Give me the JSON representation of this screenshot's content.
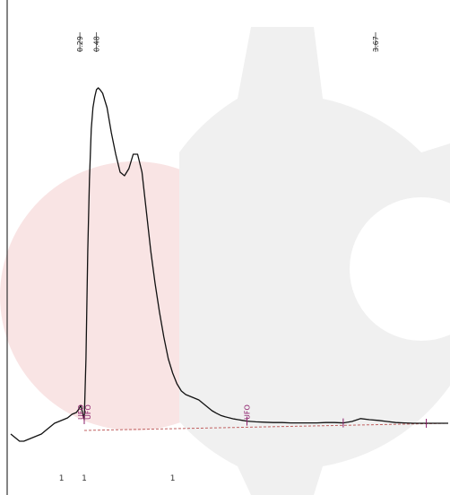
{
  "colors": {
    "trace": "#111111",
    "baseline": "#c06060",
    "event": "#8b1e6b",
    "watermark_pink": "#f7dede",
    "watermark_gray": "#eeeeee"
  },
  "chart_data": {
    "type": "line",
    "title": "",
    "xlabel": "",
    "ylabel": "",
    "grid": false,
    "xlim": [
      -0.5,
      4.5
    ],
    "ylim": [
      -0.05,
      1.05
    ],
    "peak_labels": [
      {
        "x": 0.29,
        "text": "0.29"
      },
      {
        "x": 0.48,
        "text": "0.48"
      },
      {
        "x": 3.67,
        "text": "3.67"
      }
    ],
    "event_labels": [
      {
        "x": 0.3,
        "text": "UFO"
      },
      {
        "x": 0.38,
        "text": "UFO"
      },
      {
        "x": 2.2,
        "text": "UFO"
      }
    ],
    "tick_marks": [
      {
        "x": 0.08,
        "label": "1"
      },
      {
        "x": 0.34,
        "label": "1"
      },
      {
        "x": 1.35,
        "label": "1"
      }
    ],
    "event_markers": [
      0.34,
      2.2,
      3.3,
      4.25
    ],
    "series": [
      {
        "x": [
          -0.5,
          -0.45,
          -0.4,
          -0.35,
          -0.3,
          -0.25,
          -0.2,
          -0.15,
          -0.1,
          -0.05,
          0.0,
          0.05,
          0.1,
          0.15,
          0.2,
          0.25,
          0.28,
          0.3,
          0.32,
          0.34,
          0.36,
          0.38,
          0.4,
          0.42,
          0.44,
          0.46,
          0.48,
          0.5,
          0.52,
          0.55,
          0.6,
          0.65,
          0.7,
          0.75,
          0.8,
          0.85,
          0.9,
          0.95,
          1.0,
          1.05,
          1.1,
          1.15,
          1.2,
          1.25,
          1.3,
          1.35,
          1.4,
          1.45,
          1.5,
          1.55,
          1.6,
          1.65,
          1.7,
          1.75,
          1.8,
          1.85,
          1.9,
          1.95,
          2.0,
          2.05,
          2.1,
          2.15,
          2.2,
          2.3,
          2.4,
          2.5,
          2.6,
          2.7,
          2.8,
          2.9,
          3.0,
          3.1,
          3.2,
          3.3,
          3.4,
          3.5,
          3.6,
          3.7,
          3.8,
          3.9,
          4.0,
          4.1,
          4.2,
          4.3,
          4.4,
          4.5
        ],
        "y": [
          -0.01,
          -0.02,
          -0.03,
          -0.03,
          -0.025,
          -0.02,
          -0.015,
          -0.01,
          0.0,
          0.01,
          0.02,
          0.025,
          0.03,
          0.035,
          0.045,
          0.05,
          0.06,
          0.07,
          0.05,
          0.03,
          0.2,
          0.5,
          0.7,
          0.84,
          0.9,
          0.93,
          0.95,
          0.955,
          0.95,
          0.94,
          0.9,
          0.83,
          0.77,
          0.72,
          0.71,
          0.73,
          0.77,
          0.77,
          0.72,
          0.61,
          0.5,
          0.41,
          0.33,
          0.26,
          0.2,
          0.16,
          0.13,
          0.11,
          0.1,
          0.095,
          0.09,
          0.085,
          0.075,
          0.065,
          0.055,
          0.048,
          0.042,
          0.038,
          0.035,
          0.032,
          0.03,
          0.028,
          0.026,
          0.024,
          0.023,
          0.022,
          0.022,
          0.021,
          0.021,
          0.021,
          0.021,
          0.022,
          0.022,
          0.021,
          0.025,
          0.033,
          0.03,
          0.028,
          0.025,
          0.022,
          0.021,
          0.02,
          0.02,
          0.02,
          0.02,
          0.02
        ]
      }
    ]
  }
}
